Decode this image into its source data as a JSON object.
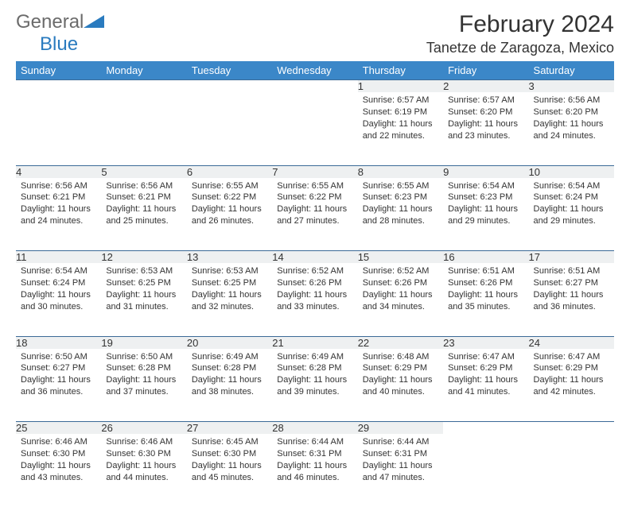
{
  "logo": {
    "general": "General",
    "blue": "Blue"
  },
  "title": "February 2024",
  "location": "Tanetze de Zaragoza, Mexico",
  "colors": {
    "header_bg": "#3b87c8",
    "header_fg": "#ffffff",
    "rule": "#3b6a97",
    "daynum_bg": "#eef0f1",
    "logo_general": "#6b6b6b",
    "logo_blue": "#2a7bbf"
  },
  "day_headers": [
    "Sunday",
    "Monday",
    "Tuesday",
    "Wednesday",
    "Thursday",
    "Friday",
    "Saturday"
  ],
  "weeks": [
    [
      {
        "n": "",
        "sr": "",
        "ss": "",
        "dl": ""
      },
      {
        "n": "",
        "sr": "",
        "ss": "",
        "dl": ""
      },
      {
        "n": "",
        "sr": "",
        "ss": "",
        "dl": ""
      },
      {
        "n": "",
        "sr": "",
        "ss": "",
        "dl": ""
      },
      {
        "n": "1",
        "sr": "Sunrise: 6:57 AM",
        "ss": "Sunset: 6:19 PM",
        "dl": "Daylight: 11 hours and 22 minutes."
      },
      {
        "n": "2",
        "sr": "Sunrise: 6:57 AM",
        "ss": "Sunset: 6:20 PM",
        "dl": "Daylight: 11 hours and 23 minutes."
      },
      {
        "n": "3",
        "sr": "Sunrise: 6:56 AM",
        "ss": "Sunset: 6:20 PM",
        "dl": "Daylight: 11 hours and 24 minutes."
      }
    ],
    [
      {
        "n": "4",
        "sr": "Sunrise: 6:56 AM",
        "ss": "Sunset: 6:21 PM",
        "dl": "Daylight: 11 hours and 24 minutes."
      },
      {
        "n": "5",
        "sr": "Sunrise: 6:56 AM",
        "ss": "Sunset: 6:21 PM",
        "dl": "Daylight: 11 hours and 25 minutes."
      },
      {
        "n": "6",
        "sr": "Sunrise: 6:55 AM",
        "ss": "Sunset: 6:22 PM",
        "dl": "Daylight: 11 hours and 26 minutes."
      },
      {
        "n": "7",
        "sr": "Sunrise: 6:55 AM",
        "ss": "Sunset: 6:22 PM",
        "dl": "Daylight: 11 hours and 27 minutes."
      },
      {
        "n": "8",
        "sr": "Sunrise: 6:55 AM",
        "ss": "Sunset: 6:23 PM",
        "dl": "Daylight: 11 hours and 28 minutes."
      },
      {
        "n": "9",
        "sr": "Sunrise: 6:54 AM",
        "ss": "Sunset: 6:23 PM",
        "dl": "Daylight: 11 hours and 29 minutes."
      },
      {
        "n": "10",
        "sr": "Sunrise: 6:54 AM",
        "ss": "Sunset: 6:24 PM",
        "dl": "Daylight: 11 hours and 29 minutes."
      }
    ],
    [
      {
        "n": "11",
        "sr": "Sunrise: 6:54 AM",
        "ss": "Sunset: 6:24 PM",
        "dl": "Daylight: 11 hours and 30 minutes."
      },
      {
        "n": "12",
        "sr": "Sunrise: 6:53 AM",
        "ss": "Sunset: 6:25 PM",
        "dl": "Daylight: 11 hours and 31 minutes."
      },
      {
        "n": "13",
        "sr": "Sunrise: 6:53 AM",
        "ss": "Sunset: 6:25 PM",
        "dl": "Daylight: 11 hours and 32 minutes."
      },
      {
        "n": "14",
        "sr": "Sunrise: 6:52 AM",
        "ss": "Sunset: 6:26 PM",
        "dl": "Daylight: 11 hours and 33 minutes."
      },
      {
        "n": "15",
        "sr": "Sunrise: 6:52 AM",
        "ss": "Sunset: 6:26 PM",
        "dl": "Daylight: 11 hours and 34 minutes."
      },
      {
        "n": "16",
        "sr": "Sunrise: 6:51 AM",
        "ss": "Sunset: 6:26 PM",
        "dl": "Daylight: 11 hours and 35 minutes."
      },
      {
        "n": "17",
        "sr": "Sunrise: 6:51 AM",
        "ss": "Sunset: 6:27 PM",
        "dl": "Daylight: 11 hours and 36 minutes."
      }
    ],
    [
      {
        "n": "18",
        "sr": "Sunrise: 6:50 AM",
        "ss": "Sunset: 6:27 PM",
        "dl": "Daylight: 11 hours and 36 minutes."
      },
      {
        "n": "19",
        "sr": "Sunrise: 6:50 AM",
        "ss": "Sunset: 6:28 PM",
        "dl": "Daylight: 11 hours and 37 minutes."
      },
      {
        "n": "20",
        "sr": "Sunrise: 6:49 AM",
        "ss": "Sunset: 6:28 PM",
        "dl": "Daylight: 11 hours and 38 minutes."
      },
      {
        "n": "21",
        "sr": "Sunrise: 6:49 AM",
        "ss": "Sunset: 6:28 PM",
        "dl": "Daylight: 11 hours and 39 minutes."
      },
      {
        "n": "22",
        "sr": "Sunrise: 6:48 AM",
        "ss": "Sunset: 6:29 PM",
        "dl": "Daylight: 11 hours and 40 minutes."
      },
      {
        "n": "23",
        "sr": "Sunrise: 6:47 AM",
        "ss": "Sunset: 6:29 PM",
        "dl": "Daylight: 11 hours and 41 minutes."
      },
      {
        "n": "24",
        "sr": "Sunrise: 6:47 AM",
        "ss": "Sunset: 6:29 PM",
        "dl": "Daylight: 11 hours and 42 minutes."
      }
    ],
    [
      {
        "n": "25",
        "sr": "Sunrise: 6:46 AM",
        "ss": "Sunset: 6:30 PM",
        "dl": "Daylight: 11 hours and 43 minutes."
      },
      {
        "n": "26",
        "sr": "Sunrise: 6:46 AM",
        "ss": "Sunset: 6:30 PM",
        "dl": "Daylight: 11 hours and 44 minutes."
      },
      {
        "n": "27",
        "sr": "Sunrise: 6:45 AM",
        "ss": "Sunset: 6:30 PM",
        "dl": "Daylight: 11 hours and 45 minutes."
      },
      {
        "n": "28",
        "sr": "Sunrise: 6:44 AM",
        "ss": "Sunset: 6:31 PM",
        "dl": "Daylight: 11 hours and 46 minutes."
      },
      {
        "n": "29",
        "sr": "Sunrise: 6:44 AM",
        "ss": "Sunset: 6:31 PM",
        "dl": "Daylight: 11 hours and 47 minutes."
      },
      {
        "n": "",
        "sr": "",
        "ss": "",
        "dl": ""
      },
      {
        "n": "",
        "sr": "",
        "ss": "",
        "dl": ""
      }
    ]
  ]
}
